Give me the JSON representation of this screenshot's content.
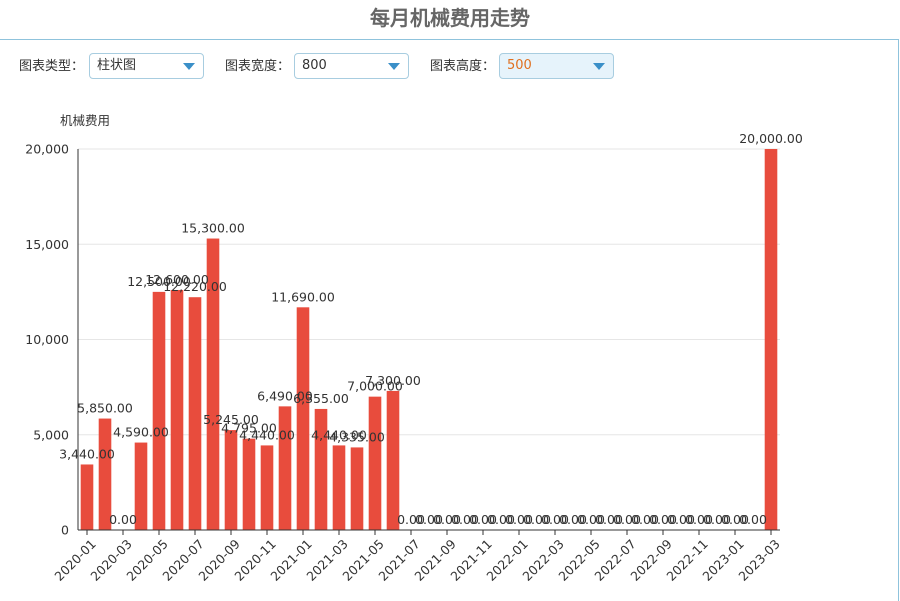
{
  "page": {
    "title": "每月机械费用走势"
  },
  "controls": {
    "type_label": "图表类型：",
    "type_value": "柱状图",
    "width_label": "图表宽度：",
    "width_value": "800",
    "height_label": "图表高度：",
    "height_value": "500"
  },
  "colors": {
    "bar": "#e84c3d",
    "axis": "#333333",
    "grid": "#e6e6e6"
  },
  "chart_data": {
    "type": "bar",
    "title": "",
    "ylabel": "机械费用",
    "xlabel": "",
    "ylim": [
      0,
      20000
    ],
    "yticks": [
      0,
      5000,
      10000,
      15000,
      20000
    ],
    "ytick_labels": [
      "0",
      "5,000",
      "10,000",
      "15,000",
      "20,000"
    ],
    "grid": true,
    "categories": [
      "2020-01",
      "2020-02",
      "2020-03",
      "2020-04",
      "2020-05",
      "2020-06",
      "2020-07",
      "2020-08",
      "2020-09",
      "2020-10",
      "2020-11",
      "2020-12",
      "2021-01",
      "2021-02",
      "2021-03",
      "2021-04",
      "2021-05",
      "2021-06",
      "2021-07",
      "2021-08",
      "2021-09",
      "2021-10",
      "2021-11",
      "2021-12",
      "2022-01",
      "2022-02",
      "2022-03",
      "2022-04",
      "2022-05",
      "2022-06",
      "2022-07",
      "2022-08",
      "2022-09",
      "2022-10",
      "2022-11",
      "2022-12",
      "2023-01",
      "2023-02",
      "2023-03"
    ],
    "values": [
      3440,
      5850,
      0,
      4590,
      12500,
      12600,
      12220,
      15300,
      5245,
      4795,
      4440,
      6490,
      11690,
      6355,
      4440,
      4335,
      7000,
      7300,
      0,
      0,
      0,
      0,
      0,
      0,
      0,
      0,
      0,
      0,
      0,
      0,
      0,
      0,
      0,
      0,
      0,
      0,
      0,
      0,
      20000
    ],
    "data_labels": [
      "3,440.00",
      "5,850.00",
      "0.00",
      "4,590.00",
      "12,500.00",
      "12,600.00",
      "12,220.00",
      "15,300.00",
      "5,245.00",
      "4,795.00",
      "4,440.00",
      "6,490.00",
      "11,690.00",
      "6,355.00",
      "4,440.00",
      "4,335.00",
      "7,000.00",
      "7,300.00",
      "0.00",
      "0.00",
      "0.00",
      "0.00",
      "0.00",
      "0.00",
      "0.00",
      "0.00",
      "0.00",
      "0.00",
      "0.00",
      "0.00",
      "0.00",
      "0.00",
      "0.00",
      "0.00",
      "0.00",
      "0.00",
      "0.00",
      "0.00",
      "20,000.00"
    ],
    "xtick_labels": [
      "2020-01",
      "2020-03",
      "2020-05",
      "2020-07",
      "2020-09",
      "2020-11",
      "2021-01",
      "2021-03",
      "2021-05",
      "2021-07",
      "2021-09",
      "2021-11",
      "2022-01",
      "2022-03",
      "2022-05",
      "2022-07",
      "2022-09",
      "2022-11",
      "2023-01",
      "2023-03"
    ]
  }
}
